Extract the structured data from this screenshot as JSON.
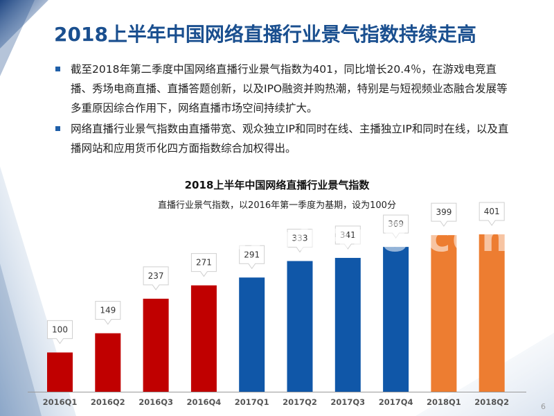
{
  "slide": {
    "title": "2018上半年中国网络直播行业景气指数持续走高",
    "bullets": [
      "截至2018年第二季度中国网络直播行业景气指数为401，同比增长20.4％，在游戏电竞直播、秀场电商直播、直播答题创新，以及IPO融资并购热潮，特别是与短视频业态融合发展等多重原因综合作用下，网络直播市场空间持续扩大。",
      "网络直播行业景气指数由直播带宽、观众独立IP和同时在线、主播独立IP和同时在线，以及直播网站和应用货币化四方面指数综合加权得出。"
    ],
    "page_number": "6",
    "watermark": "www.baogao8.com"
  },
  "chart_data": {
    "type": "bar",
    "title": "2018上半年中国网络直播行业景气指数",
    "subtitle": "直播行业景气指数，以2016年第一季度为基期，设为100分",
    "categories": [
      "2016Q1",
      "2016Q2",
      "2016Q3",
      "2016Q4",
      "2017Q1",
      "2017Q2",
      "2017Q3",
      "2017Q4",
      "2018Q1",
      "2018Q2"
    ],
    "values": [
      100,
      149,
      237,
      271,
      291,
      333,
      341,
      369,
      399,
      401
    ],
    "colors": [
      "#c00000",
      "#c00000",
      "#c00000",
      "#c00000",
      "#1057a8",
      "#1057a8",
      "#1057a8",
      "#1057a8",
      "#ed7d31",
      "#ed7d31"
    ],
    "ylim": [
      0,
      401
    ],
    "grid": false,
    "legend": "none"
  }
}
